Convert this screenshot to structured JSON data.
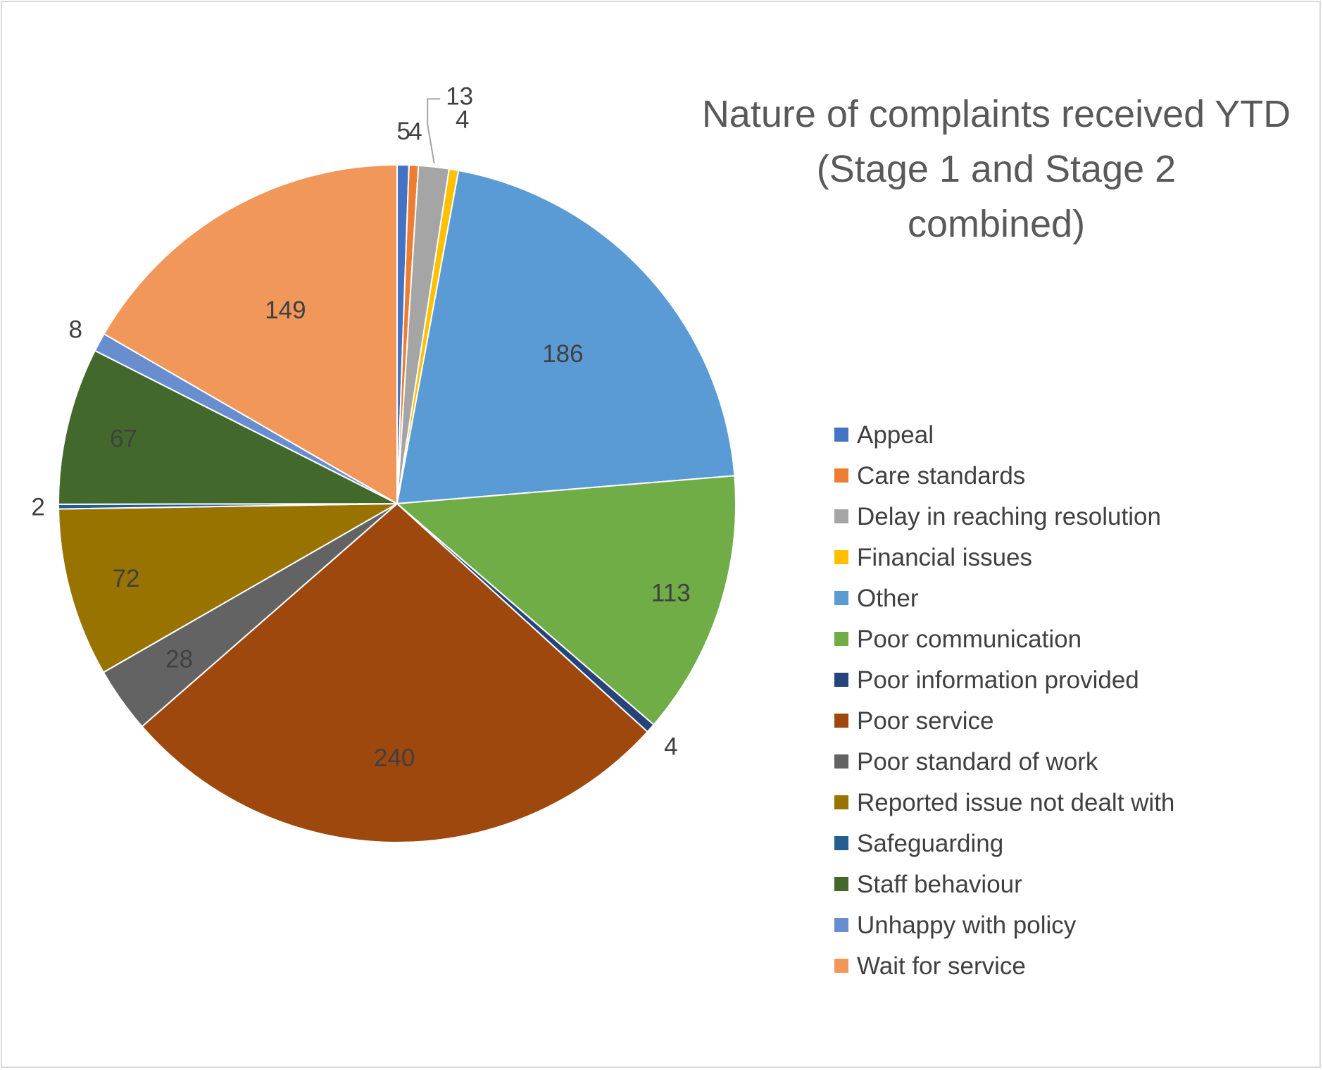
{
  "chart_data": {
    "type": "pie",
    "title_lines": [
      "Nature of complaints received YTD",
      "(Stage 1 and Stage 2",
      "combined)"
    ],
    "slices": [
      {
        "label": "Appeal",
        "value": 5,
        "color": "#4472c4"
      },
      {
        "label": "Care standards",
        "value": 4,
        "color": "#ed7d31"
      },
      {
        "label": "Delay in reaching resolution",
        "value": 13,
        "color": "#a5a5a5"
      },
      {
        "label": "Financial issues",
        "value": 4,
        "color": "#ffc000"
      },
      {
        "label": "Other",
        "value": 186,
        "color": "#5b9bd5"
      },
      {
        "label": "Poor communication",
        "value": 113,
        "color": "#70ad47"
      },
      {
        "label": "Poor information provided",
        "value": 4,
        "color": "#264478"
      },
      {
        "label": "Poor service",
        "value": 240,
        "color": "#9e480e"
      },
      {
        "label": "Poor standard of work",
        "value": 28,
        "color": "#636363"
      },
      {
        "label": "Reported issue not dealt with",
        "value": 72,
        "color": "#997300"
      },
      {
        "label": "Safeguarding",
        "value": 2,
        "color": "#255e91"
      },
      {
        "label": "Staff behaviour",
        "value": 67,
        "color": "#43682b"
      },
      {
        "label": "Unhappy with policy",
        "value": 8,
        "color": "#698ed0"
      },
      {
        "label": "Wait for service",
        "value": 149,
        "color": "#f1975a"
      }
    ],
    "legend_position": "right"
  }
}
